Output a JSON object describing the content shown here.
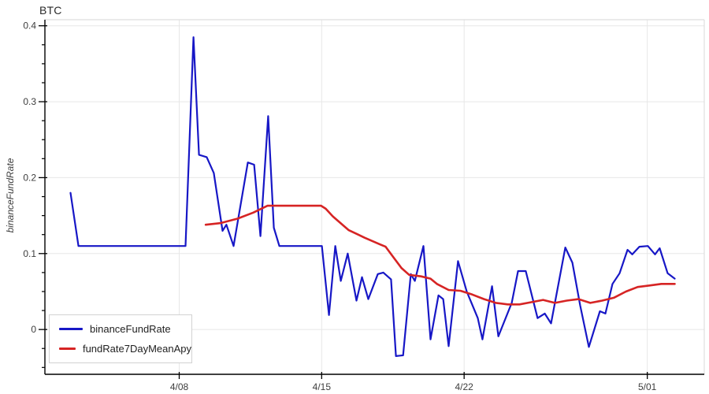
{
  "title": "BTC",
  "ylabel": "binanceFundRate",
  "colors": {
    "blue_series": "#1717c6",
    "red_series": "#d62424",
    "grid": "#e7e7e7",
    "frame_light": "#dedede",
    "axis": "#000000",
    "tick_text": "#3d3d3d",
    "title_text": "#2a2a2a",
    "legend_border": "#d2d2d2",
    "background": "#ffffff"
  },
  "legend": {
    "position": "bottom-left",
    "items": [
      {
        "label": "binanceFundRate",
        "color": "#1717c6"
      },
      {
        "label": "fundRate7DayMeanApy",
        "color": "#d62424"
      }
    ]
  },
  "chart_data": {
    "type": "line",
    "title": "BTC",
    "xlabel": "",
    "ylabel": "binanceFundRate",
    "x_encoding": "fractional days since April 1 (tick 4/08 = 7)",
    "xticks": {
      "values": [
        7,
        14,
        21,
        30
      ],
      "labels": [
        "4/08",
        "4/15",
        "4/22",
        "5/01"
      ]
    },
    "yticks": {
      "values": [
        0,
        0.1,
        0.2,
        0.3,
        0.4
      ],
      "labels": [
        "0",
        "0.1",
        "0.2",
        "0.3",
        "0.4"
      ]
    },
    "y_minor_step": 0.025,
    "y_minor_range": [
      -0.05,
      0.4
    ],
    "xlim": [
      0.4,
      32.8
    ],
    "ylim": [
      -0.059,
      0.408
    ],
    "grid": true,
    "legend_position": "bottom-left",
    "series": [
      {
        "name": "binanceFundRate",
        "color": "#1717c6",
        "width": 2.2,
        "points": [
          [
            1.66,
            0.18
          ],
          [
            2.05,
            0.11
          ],
          [
            7.31,
            0.11
          ],
          [
            7.7,
            0.385
          ],
          [
            7.97,
            0.23
          ],
          [
            8.35,
            0.227
          ],
          [
            8.7,
            0.206
          ],
          [
            9.13,
            0.13
          ],
          [
            9.32,
            0.138
          ],
          [
            9.67,
            0.11
          ],
          [
            10.37,
            0.22
          ],
          [
            10.68,
            0.217
          ],
          [
            10.99,
            0.123
          ],
          [
            11.37,
            0.281
          ],
          [
            11.65,
            0.134
          ],
          [
            11.92,
            0.11
          ],
          [
            14.01,
            0.11
          ],
          [
            14.36,
            0.019
          ],
          [
            14.67,
            0.11
          ],
          [
            14.94,
            0.064
          ],
          [
            15.28,
            0.1
          ],
          [
            15.71,
            0.038
          ],
          [
            15.98,
            0.069
          ],
          [
            16.29,
            0.04
          ],
          [
            16.76,
            0.073
          ],
          [
            17.03,
            0.075
          ],
          [
            17.41,
            0.066
          ],
          [
            17.65,
            -0.035
          ],
          [
            18.0,
            -0.034
          ],
          [
            18.38,
            0.073
          ],
          [
            18.58,
            0.064
          ],
          [
            19.0,
            0.11
          ],
          [
            19.35,
            -0.013
          ],
          [
            19.74,
            0.045
          ],
          [
            19.97,
            0.04
          ],
          [
            20.24,
            -0.022
          ],
          [
            20.7,
            0.09
          ],
          [
            21.13,
            0.05
          ],
          [
            21.67,
            0.015
          ],
          [
            21.9,
            -0.013
          ],
          [
            22.37,
            0.057
          ],
          [
            22.68,
            -0.009
          ],
          [
            23.34,
            0.035
          ],
          [
            23.65,
            0.077
          ],
          [
            24.03,
            0.077
          ],
          [
            24.61,
            0.015
          ],
          [
            24.96,
            0.021
          ],
          [
            25.27,
            0.008
          ],
          [
            25.97,
            0.108
          ],
          [
            26.32,
            0.088
          ],
          [
            26.7,
            0.032
          ],
          [
            27.13,
            -0.023
          ],
          [
            27.67,
            0.024
          ],
          [
            27.94,
            0.021
          ],
          [
            28.29,
            0.06
          ],
          [
            28.64,
            0.074
          ],
          [
            29.03,
            0.105
          ],
          [
            29.26,
            0.099
          ],
          [
            29.61,
            0.109
          ],
          [
            30.03,
            0.11
          ],
          [
            30.38,
            0.099
          ],
          [
            30.61,
            0.107
          ],
          [
            31.0,
            0.074
          ],
          [
            31.35,
            0.067
          ]
        ]
      },
      {
        "name": "fundRate7DayMeanApy",
        "color": "#d62424",
        "width": 2.6,
        "points": [
          [
            8.3,
            0.138
          ],
          [
            9.01,
            0.14
          ],
          [
            9.86,
            0.146
          ],
          [
            10.64,
            0.154
          ],
          [
            11.34,
            0.163
          ],
          [
            11.92,
            0.163
          ],
          [
            13.97,
            0.163
          ],
          [
            14.2,
            0.159
          ],
          [
            14.55,
            0.149
          ],
          [
            15.32,
            0.131
          ],
          [
            15.79,
            0.125
          ],
          [
            16.1,
            0.121
          ],
          [
            16.87,
            0.112
          ],
          [
            17.14,
            0.109
          ],
          [
            17.53,
            0.095
          ],
          [
            17.92,
            0.081
          ],
          [
            18.3,
            0.072
          ],
          [
            18.88,
            0.07
          ],
          [
            19.35,
            0.067
          ],
          [
            19.66,
            0.06
          ],
          [
            20.24,
            0.052
          ],
          [
            20.82,
            0.051
          ],
          [
            21.4,
            0.046
          ],
          [
            21.98,
            0.04
          ],
          [
            22.56,
            0.035
          ],
          [
            23.14,
            0.033
          ],
          [
            23.72,
            0.033
          ],
          [
            24.3,
            0.036
          ],
          [
            24.88,
            0.039
          ],
          [
            25.46,
            0.035
          ],
          [
            26.04,
            0.038
          ],
          [
            26.62,
            0.04
          ],
          [
            27.2,
            0.035
          ],
          [
            27.78,
            0.038
          ],
          [
            28.37,
            0.042
          ],
          [
            28.95,
            0.05
          ],
          [
            29.53,
            0.056
          ],
          [
            30.11,
            0.058
          ],
          [
            30.69,
            0.06
          ],
          [
            31.35,
            0.06
          ]
        ]
      }
    ]
  }
}
